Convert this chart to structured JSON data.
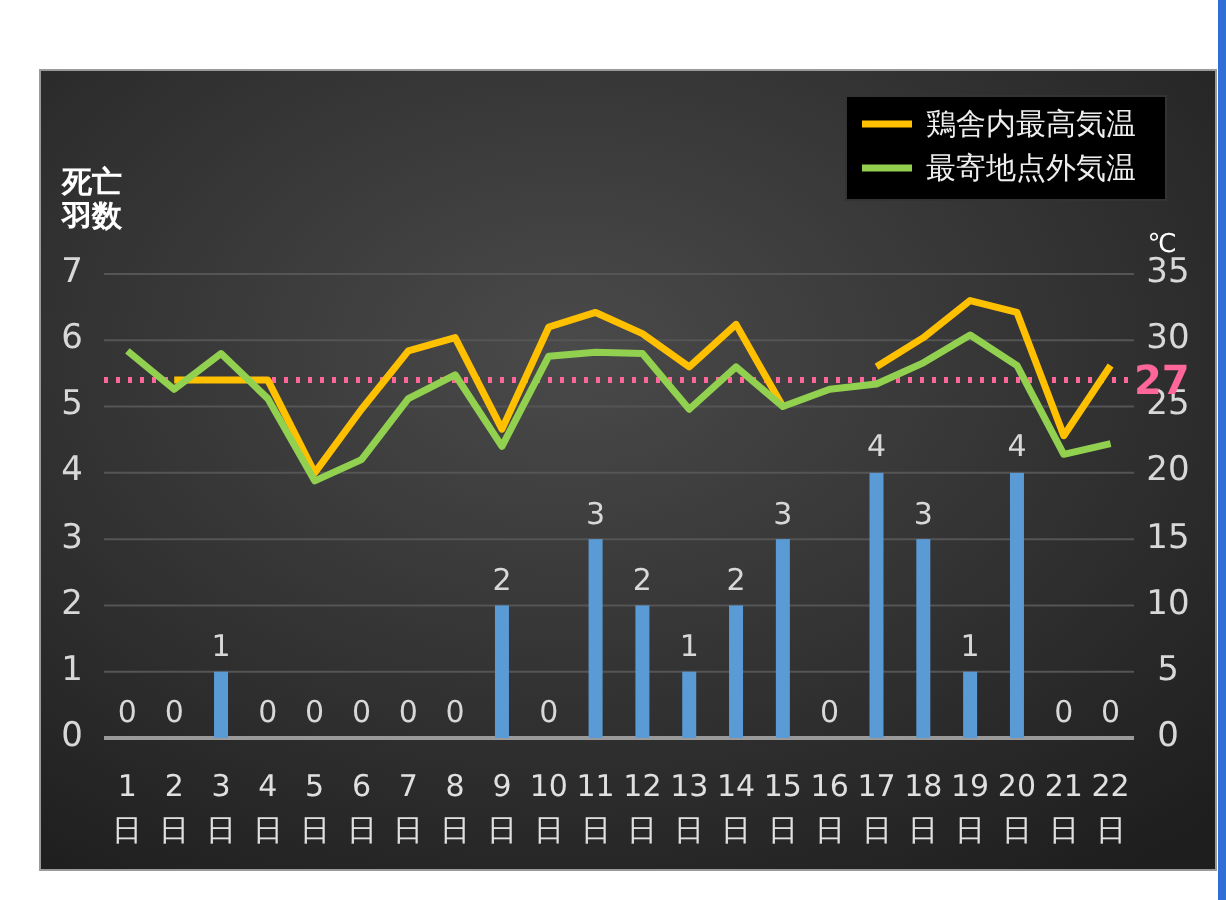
{
  "chart_data": {
    "type": "bar",
    "categories": [
      "1日",
      "2日",
      "3日",
      "4日",
      "5日",
      "6日",
      "7日",
      "8日",
      "9日",
      "10日",
      "11日",
      "12日",
      "13日",
      "14日",
      "15日",
      "16日",
      "17日",
      "18日",
      "19日",
      "20日",
      "21日",
      "22日"
    ],
    "ylabel": "死亡羽数",
    "y2label": "℃",
    "ylim": [
      0,
      7
    ],
    "yticks": [
      0,
      1,
      2,
      3,
      4,
      5,
      6,
      7
    ],
    "y2lim": [
      0,
      35
    ],
    "y2ticks": [
      0,
      5,
      10,
      15,
      20,
      25,
      30,
      35
    ],
    "series": [
      {
        "color": "#5b9bd5",
        "values": [
          0,
          0,
          1,
          0,
          0,
          0,
          0,
          0,
          2,
          0,
          3,
          2,
          1,
          2,
          3,
          0,
          4,
          3,
          1,
          4,
          0,
          0
        ],
        "value_labels": [
          "0",
          "0",
          "1",
          "0",
          "0",
          "0",
          "0",
          "0",
          "2",
          "0",
          "3",
          "2",
          "1",
          "2",
          "3",
          "0",
          "4",
          "3",
          "1",
          "4",
          "0",
          "0"
        ]
      },
      {
        "type": "line",
        "axis": "y2",
        "name": "鶏舎内最高気温",
        "color": "#ffc000",
        "values": [
          null,
          27,
          27,
          27,
          20,
          24.8,
          29.2,
          30.2,
          23.3,
          31,
          32.1,
          30.5,
          28,
          31.2,
          25,
          null,
          28,
          30.2,
          33,
          32.1,
          22.8,
          28.1
        ]
      },
      {
        "type": "line",
        "axis": "y2",
        "name": "最寄地点外気温",
        "color": "#92d050",
        "values": [
          29.2,
          26.3,
          29,
          25.6,
          19.4,
          21,
          25.6,
          27.4,
          22,
          28.8,
          29.1,
          29,
          24.8,
          28,
          25,
          26.3,
          26.7,
          28.3,
          30.4,
          28.1,
          21.4,
          22.2
        ]
      }
    ],
    "ref_lines": [
      {
        "axis": "y2",
        "value": 27,
        "label": "27",
        "color": "#ff6699",
        "line_style": "dotted"
      }
    ],
    "grid": "y",
    "legend": "top right"
  }
}
